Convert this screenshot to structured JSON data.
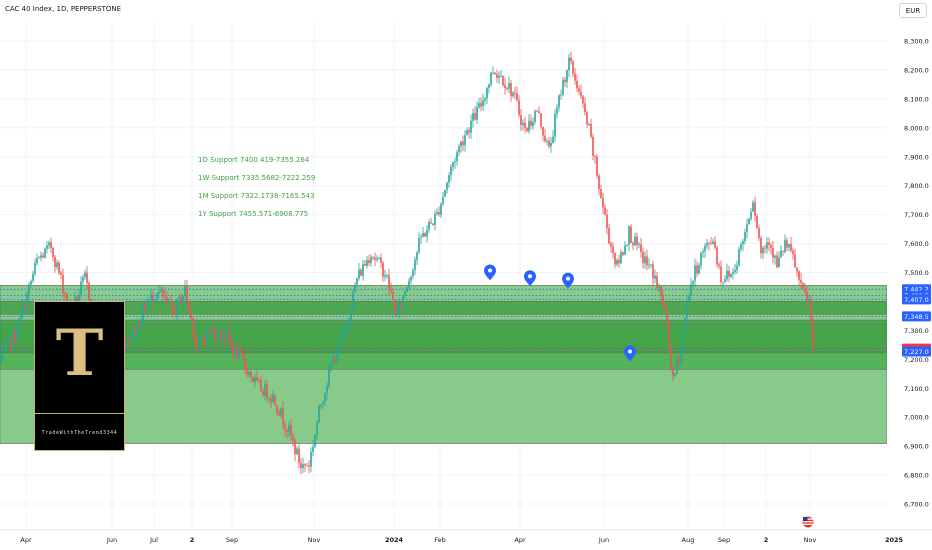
{
  "header": {
    "title": "CAC 40 Index, 1D, PEPPERSTONE",
    "currency": "EUR"
  },
  "support_notes": [
    "1D Support 7400.419-7355.264",
    "1W Support 7335.5682-7222.259",
    "1M Support 7322.1738-7165.543",
    "1Y Support 7455.571-6908.775"
  ],
  "logo": {
    "letter": "T",
    "text": "TradeWithTheTrend3344"
  },
  "colors": {
    "up": "#26a69a",
    "down": "#ef5350",
    "zone_light": "#81c784",
    "zone_dark": "#4caf50",
    "zone_band": "#43a047",
    "marker": "#2962ff",
    "label_blue": "#2962ff",
    "label_red": "#f23645",
    "support_text": "#43a047"
  },
  "chart_data": {
    "type": "candlestick",
    "ylim": [
      6650,
      8350
    ],
    "y_ticks": [
      "8,300.0",
      "8,200.0",
      "8,100.0",
      "8,000.0",
      "7,900.0",
      "7,800.0",
      "7,700.0",
      "7,600.0",
      "7,500.0",
      "7,400.0",
      "7,300.0",
      "7,200.0",
      "7,100.0",
      "7,000.0",
      "6,900.0",
      "6,800.0",
      "6,700.0"
    ],
    "y_tick_values": [
      8300,
      8200,
      8100,
      8000,
      7900,
      7800,
      7700,
      7600,
      7500,
      7400,
      7300,
      7200,
      7100,
      7000,
      6900,
      6800,
      6700
    ],
    "x_ticks": [
      {
        "label": "Apr",
        "idx": 3,
        "bold": false
      },
      {
        "label": "Jun",
        "idx": 46,
        "bold": false
      },
      {
        "label": "Jul",
        "idx": 67,
        "bold": false
      },
      {
        "label": "2",
        "idx": 86,
        "bold": true
      },
      {
        "label": "Sep",
        "idx": 106,
        "bold": false
      },
      {
        "label": "Nov",
        "idx": 147,
        "bold": false
      },
      {
        "label": "2024",
        "idx": 187,
        "bold": true
      },
      {
        "label": "Feb",
        "idx": 210,
        "bold": false
      },
      {
        "label": "Apr",
        "idx": 250,
        "bold": false
      },
      {
        "label": "Jun",
        "idx": 292,
        "bold": false
      },
      {
        "label": "Aug",
        "idx": 334,
        "bold": false
      },
      {
        "label": "Sep",
        "idx": 352,
        "bold": false
      },
      {
        "label": "2",
        "idx": 373,
        "bold": true
      },
      {
        "label": "Nov",
        "idx": 395,
        "bold": false
      },
      {
        "label": "2025",
        "idx": 437,
        "bold": true
      }
    ],
    "zones": [
      {
        "name": "1Y Support",
        "from": 6908.775,
        "to": 7455.571,
        "color": "#81c784"
      },
      {
        "name": "1M Support",
        "from": 7165.543,
        "to": 7322.1738,
        "color": "#4caf50"
      },
      {
        "name": "1D Support",
        "from": 7355.264,
        "to": 7400.419,
        "color": "#43a047"
      },
      {
        "name": "1W Support",
        "from": 7222.259,
        "to": 7335.5682,
        "color": "#43a047"
      }
    ],
    "price_labels": [
      {
        "text": "7,442.2",
        "value": 7442.2,
        "color": "#2962ff"
      },
      {
        "text": "7,420.5",
        "value": 7420.5,
        "color": "#2962ff"
      },
      {
        "text": "7,407.0",
        "value": 7407.0,
        "color": "#2962ff"
      },
      {
        "text": "7,348.5",
        "value": 7348.5,
        "color": "#2962ff"
      },
      {
        "text": "7,237.1",
        "value": 7237.1,
        "color": "#f23645"
      },
      {
        "text": "7,227.0",
        "value": 7227.0,
        "color": "#2962ff"
      }
    ],
    "markers": [
      {
        "idx": 245,
        "value": 7500
      },
      {
        "idx": 265,
        "value": 7480
      },
      {
        "idx": 284,
        "value": 7472
      },
      {
        "idx": 315,
        "value": 7220
      }
    ],
    "anchors": [
      [
        0,
        7200
      ],
      [
        8,
        7300
      ],
      [
        18,
        7540
      ],
      [
        25,
        7590
      ],
      [
        35,
        7360
      ],
      [
        42,
        7480
      ],
      [
        50,
        7250
      ],
      [
        58,
        7230
      ],
      [
        66,
        7290
      ],
      [
        72,
        7380
      ],
      [
        78,
        7440
      ],
      [
        86,
        7360
      ],
      [
        92,
        7440
      ],
      [
        98,
        7240
      ],
      [
        104,
        7300
      ],
      [
        112,
        7280
      ],
      [
        120,
        7200
      ],
      [
        128,
        7110
      ],
      [
        136,
        7070
      ],
      [
        144,
        6950
      ],
      [
        150,
        6830
      ],
      [
        154,
        6840
      ],
      [
        160,
        7050
      ],
      [
        166,
        7200
      ],
      [
        172,
        7300
      ],
      [
        178,
        7480
      ],
      [
        185,
        7570
      ],
      [
        192,
        7500
      ],
      [
        198,
        7350
      ],
      [
        204,
        7480
      ],
      [
        210,
        7620
      ],
      [
        218,
        7700
      ],
      [
        226,
        7880
      ],
      [
        232,
        7980
      ],
      [
        240,
        8080
      ],
      [
        246,
        8200
      ],
      [
        250,
        8180
      ],
      [
        256,
        8120
      ],
      [
        262,
        7990
      ],
      [
        268,
        8060
      ],
      [
        274,
        7920
      ],
      [
        280,
        8130
      ],
      [
        284,
        8230
      ],
      [
        288,
        8150
      ],
      [
        294,
        7990
      ],
      [
        300,
        7760
      ],
      [
        304,
        7620
      ],
      [
        308,
        7520
      ],
      [
        314,
        7640
      ],
      [
        320,
        7560
      ],
      [
        326,
        7500
      ],
      [
        332,
        7370
      ],
      [
        336,
        7120
      ],
      [
        340,
        7240
      ],
      [
        344,
        7440
      ],
      [
        350,
        7560
      ],
      [
        356,
        7620
      ],
      [
        360,
        7480
      ],
      [
        366,
        7500
      ],
      [
        372,
        7640
      ],
      [
        376,
        7760
      ],
      [
        380,
        7570
      ],
      [
        384,
        7620
      ],
      [
        388,
        7520
      ],
      [
        392,
        7600
      ],
      [
        396,
        7550
      ],
      [
        400,
        7440
      ],
      [
        404,
        7400
      ],
      [
        406,
        7237.1
      ]
    ],
    "n_bars": 407
  }
}
